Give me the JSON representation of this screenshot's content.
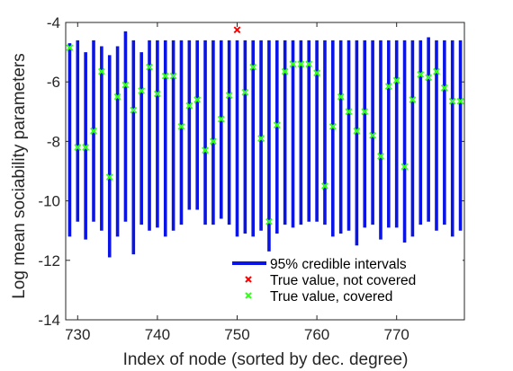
{
  "chart_data": {
    "type": "errorbar",
    "xlabel": "Index of node (sorted by dec. degree)",
    "ylabel": "Log mean sociability parameters",
    "xlim": [
      728.5,
      778.5
    ],
    "ylim": [
      -14,
      -4
    ],
    "xticks": [
      730,
      740,
      750,
      760,
      770
    ],
    "yticks": [
      -14,
      -12,
      -10,
      -8,
      -6,
      -4
    ],
    "xtick_labels": [
      "730",
      "740",
      "750",
      "760",
      "770"
    ],
    "ytick_labels": [
      "-14",
      "-12",
      "-10",
      "-8",
      "-6",
      "-4"
    ],
    "grid": false,
    "legend_position": "bottom-right",
    "colors": {
      "interval": "#0a14e6",
      "not_covered": "#ff0000",
      "covered": "#33ff1a",
      "axis": "#262626"
    },
    "x": [
      729,
      730,
      731,
      732,
      733,
      734,
      735,
      736,
      737,
      738,
      739,
      740,
      741,
      742,
      743,
      744,
      745,
      746,
      747,
      748,
      749,
      750,
      751,
      752,
      753,
      754,
      755,
      756,
      757,
      758,
      759,
      760,
      761,
      762,
      763,
      764,
      765,
      766,
      767,
      768,
      769,
      770,
      771,
      772,
      773,
      774,
      775,
      776,
      777,
      778
    ],
    "interval_upper": [
      -4.7,
      -4.6,
      -5.0,
      -4.6,
      -4.8,
      -5.1,
      -4.8,
      -4.3,
      -4.6,
      -5.0,
      -4.6,
      -4.6,
      -4.6,
      -4.6,
      -4.6,
      -4.6,
      -4.6,
      -4.6,
      -4.6,
      -4.6,
      -4.6,
      -4.6,
      -4.6,
      -4.6,
      -4.6,
      -4.6,
      -4.6,
      -4.6,
      -4.6,
      -4.6,
      -4.6,
      -4.6,
      -4.6,
      -4.6,
      -4.6,
      -4.6,
      -4.6,
      -4.6,
      -4.6,
      -4.6,
      -4.6,
      -4.6,
      -4.6,
      -4.6,
      -4.6,
      -4.5,
      -4.6,
      -4.6,
      -4.6,
      -4.6
    ],
    "interval_lower": [
      -11.2,
      -10.7,
      -11.3,
      -10.7,
      -11.0,
      -11.9,
      -11.2,
      -10.7,
      -11.8,
      -10.8,
      -11.0,
      -10.9,
      -11.2,
      -11.0,
      -10.8,
      -10.3,
      -10.3,
      -10.8,
      -10.8,
      -10.6,
      -10.8,
      -11.2,
      -11.1,
      -11.2,
      -11.0,
      -11.7,
      -11.1,
      -10.8,
      -10.9,
      -10.8,
      -10.7,
      -10.7,
      -10.8,
      -11.2,
      -11.1,
      -11.0,
      -11.5,
      -10.9,
      -10.8,
      -11.3,
      -10.9,
      -10.9,
      -11.4,
      -11.2,
      -10.8,
      -10.7,
      -11.0,
      -10.8,
      -11.2,
      -11.0
    ],
    "true_value": [
      -4.85,
      -8.2,
      -8.2,
      -7.65,
      -5.65,
      -9.2,
      -6.5,
      -6.1,
      -6.95,
      -6.3,
      -5.5,
      -6.4,
      -5.8,
      -5.8,
      -7.5,
      -6.8,
      -6.6,
      -8.3,
      -8.0,
      -7.25,
      -6.45,
      -4.25,
      -6.35,
      -5.5,
      -7.9,
      -10.7,
      -7.45,
      -5.65,
      -5.4,
      -5.4,
      -5.4,
      -5.7,
      -9.5,
      -7.5,
      -6.5,
      -7.0,
      -7.65,
      -7.0,
      -7.8,
      -8.5,
      -6.15,
      -5.95,
      -8.85,
      -6.6,
      -5.75,
      -5.85,
      -5.65,
      -6.2,
      -6.65,
      -6.65
    ],
    "covered": [
      true,
      true,
      true,
      true,
      true,
      true,
      true,
      true,
      true,
      true,
      true,
      true,
      true,
      true,
      true,
      true,
      true,
      true,
      true,
      true,
      true,
      false,
      true,
      true,
      true,
      true,
      true,
      true,
      true,
      true,
      true,
      true,
      true,
      true,
      true,
      true,
      true,
      true,
      true,
      true,
      true,
      true,
      true,
      true,
      true,
      true,
      true,
      true,
      true,
      true
    ],
    "legend": [
      {
        "label": "95% credible intervals",
        "marker": "line",
        "color": "#0a14e6"
      },
      {
        "label": "True value, not covered",
        "marker": "x",
        "color": "#ff0000"
      },
      {
        "label": "True value, covered",
        "marker": "x",
        "color": "#33ff1a"
      }
    ]
  }
}
